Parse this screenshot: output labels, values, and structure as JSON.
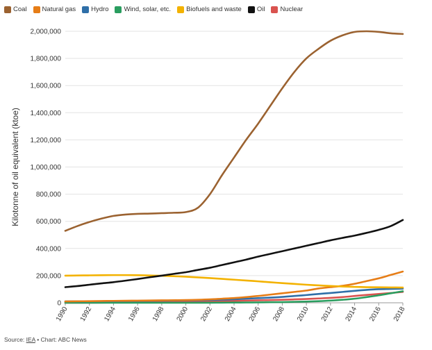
{
  "chart_data": {
    "type": "line",
    "title": "",
    "xlabel": "",
    "ylabel": "Kilotonne of oil equivalent (ktoe)",
    "xlim": [
      1990,
      2018
    ],
    "ylim": [
      0,
      2000000
    ],
    "x_ticks": [
      "1990",
      "1992",
      "1994",
      "1996",
      "1998",
      "2000",
      "2002",
      "2004",
      "2006",
      "2008",
      "2010",
      "2012",
      "2014",
      "2016",
      "2018"
    ],
    "y_ticks": [
      "0",
      "200,000",
      "400,000",
      "600,000",
      "800,000",
      "1,000,000",
      "1,200,000",
      "1,400,000",
      "1,600,000",
      "1,800,000",
      "2,000,000"
    ],
    "grid": true,
    "legend_position": "top-left",
    "x": [
      1990,
      1991,
      1992,
      1993,
      1994,
      1995,
      1996,
      1997,
      1998,
      1999,
      2000,
      2001,
      2002,
      2003,
      2004,
      2005,
      2006,
      2007,
      2008,
      2009,
      2010,
      2011,
      2012,
      2013,
      2014,
      2015,
      2016,
      2017,
      2018
    ],
    "series": [
      {
        "name": "Coal",
        "color": "#9b6230",
        "values": [
          530000,
          565000,
          595000,
          620000,
          640000,
          650000,
          655000,
          657000,
          660000,
          663000,
          668000,
          700000,
          800000,
          940000,
          1070000,
          1200000,
          1320000,
          1450000,
          1580000,
          1700000,
          1800000,
          1870000,
          1930000,
          1970000,
          1995000,
          2000000,
          1995000,
          1985000,
          1980000
        ]
      },
      {
        "name": "Natural gas",
        "color": "#e67d17",
        "values": [
          10000,
          11000,
          12000,
          13000,
          14000,
          15000,
          16000,
          17000,
          18000,
          19000,
          20000,
          22000,
          25000,
          30000,
          35000,
          42000,
          50000,
          60000,
          70000,
          80000,
          90000,
          105000,
          115000,
          125000,
          140000,
          160000,
          180000,
          205000,
          230000
        ]
      },
      {
        "name": "Hydro",
        "color": "#2f6fa8",
        "values": [
          10000,
          10500,
          11000,
          11500,
          12000,
          13000,
          14000,
          15000,
          16000,
          17000,
          18000,
          19000,
          21000,
          23000,
          26000,
          30000,
          34000,
          38000,
          43000,
          50000,
          57000,
          65000,
          72000,
          80000,
          88000,
          95000,
          100000,
          102000,
          104000
        ]
      },
      {
        "name": "Wind, solar, etc.",
        "color": "#2a9d5f",
        "values": [
          0,
          0,
          0,
          0,
          0,
          0,
          0,
          0,
          0,
          0,
          0,
          0,
          500,
          1000,
          1500,
          2000,
          3000,
          4000,
          5000,
          7000,
          9000,
          12000,
          16000,
          22000,
          30000,
          42000,
          55000,
          70000,
          85000
        ]
      },
      {
        "name": "Biofuels and waste",
        "color": "#f3b200",
        "values": [
          200000,
          201000,
          202000,
          203000,
          204000,
          204000,
          203000,
          201000,
          199000,
          196000,
          192000,
          187000,
          182000,
          176000,
          170000,
          164000,
          158000,
          151000,
          145000,
          139000,
          133000,
          128000,
          124000,
          120000,
          117000,
          115000,
          114000,
          113000,
          112000
        ]
      },
      {
        "name": "Oil",
        "color": "#111111",
        "values": [
          115000,
          123000,
          133000,
          143000,
          152000,
          163000,
          175000,
          188000,
          200000,
          213000,
          225000,
          242000,
          258000,
          278000,
          298000,
          318000,
          340000,
          360000,
          380000,
          400000,
          420000,
          440000,
          460000,
          478000,
          495000,
          515000,
          537000,
          565000,
          610000
        ]
      },
      {
        "name": "Nuclear",
        "color": "#d9534f",
        "values": [
          0,
          0,
          500,
          1000,
          2000,
          3000,
          4000,
          5000,
          6000,
          7000,
          8000,
          9000,
          10000,
          12000,
          14000,
          16000,
          18000,
          20000,
          22000,
          25000,
          28000,
          32000,
          36000,
          42000,
          50000,
          58000,
          65000,
          72000,
          80000
        ]
      }
    ]
  },
  "legend": {
    "items": [
      {
        "label": "Coal",
        "color": "#9b6230"
      },
      {
        "label": "Natural gas",
        "color": "#e67d17"
      },
      {
        "label": "Hydro",
        "color": "#2f6fa8"
      },
      {
        "label": "Wind, solar, etc.",
        "color": "#2a9d5f"
      },
      {
        "label": "Biofuels and waste",
        "color": "#f3b200"
      },
      {
        "label": "Oil",
        "color": "#111111"
      },
      {
        "label": "Nuclear",
        "color": "#d9534f"
      }
    ]
  },
  "footer": {
    "source_prefix": "Source: ",
    "source_link": "IEA",
    "credit": " • Chart: ABC News"
  }
}
